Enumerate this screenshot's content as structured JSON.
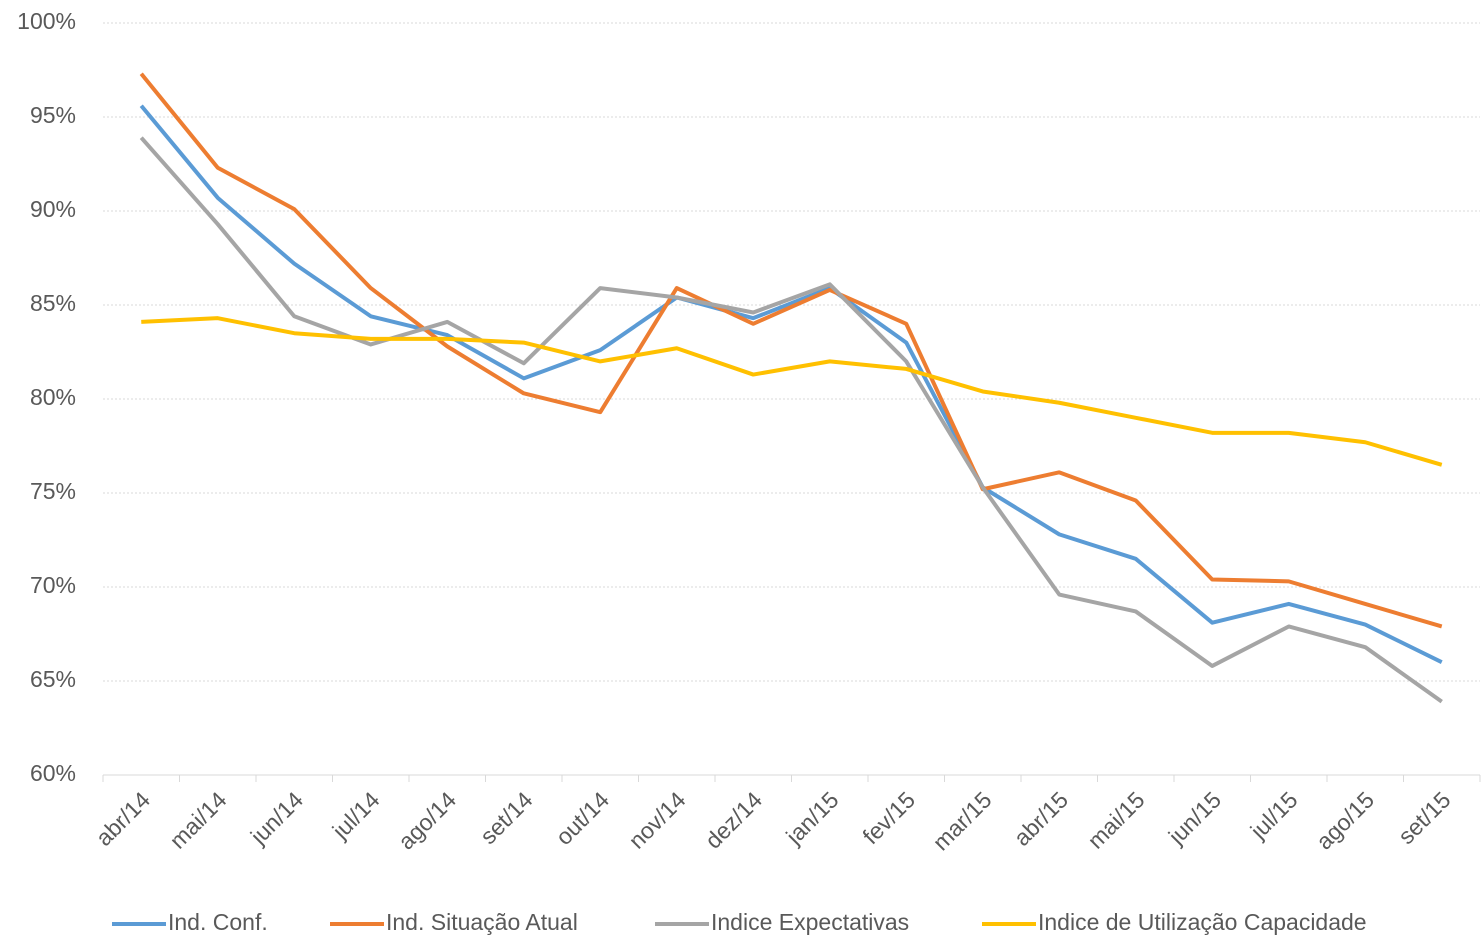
{
  "chart_data": {
    "type": "line",
    "categories": [
      "abr/14",
      "mai/14",
      "jun/14",
      "jul/14",
      "ago/14",
      "set/14",
      "out/14",
      "nov/14",
      "dez/14",
      "jan/15",
      "fev/15",
      "mar/15",
      "abr/15",
      "mai/15",
      "jun/15",
      "jul/15",
      "ago/15",
      "set/15"
    ],
    "series": [
      {
        "name": "Ind. Conf.",
        "color": "#5b9bd5",
        "values": [
          95.6,
          90.7,
          87.2,
          84.4,
          83.4,
          81.1,
          82.6,
          85.4,
          84.3,
          85.9,
          83.0,
          75.3,
          72.8,
          71.5,
          68.1,
          69.1,
          68.0,
          66.0
        ]
      },
      {
        "name": "Ind. Situação Atual",
        "color": "#ed7d31",
        "values": [
          97.3,
          92.3,
          90.1,
          85.9,
          82.8,
          80.3,
          79.3,
          85.9,
          84.0,
          85.8,
          84.0,
          75.2,
          76.1,
          74.6,
          70.4,
          70.3,
          69.1,
          67.9
        ]
      },
      {
        "name": "Indice Expectativas",
        "color": "#a5a5a5",
        "values": [
          93.9,
          89.3,
          84.4,
          82.9,
          84.1,
          81.9,
          85.9,
          85.4,
          84.6,
          86.1,
          82.0,
          75.3,
          69.6,
          68.7,
          65.8,
          67.9,
          66.8,
          63.9
        ]
      },
      {
        "name": "Indice de Utilização Capacidade",
        "color": "#ffc000",
        "values": [
          84.1,
          84.3,
          83.5,
          83.2,
          83.2,
          83.0,
          82.0,
          82.7,
          81.3,
          82.0,
          81.6,
          80.4,
          79.8,
          79.0,
          78.2,
          78.2,
          77.7,
          76.5
        ]
      }
    ],
    "ylim": [
      60,
      100
    ],
    "yticks": [
      {
        "value": 60,
        "label": "60%"
      },
      {
        "value": 65,
        "label": "65%"
      },
      {
        "value": 70,
        "label": "70%"
      },
      {
        "value": 75,
        "label": "75%"
      },
      {
        "value": 80,
        "label": "80%"
      },
      {
        "value": 85,
        "label": "85%"
      },
      {
        "value": 90,
        "label": "90%"
      },
      {
        "value": 95,
        "label": "95%"
      },
      {
        "value": 100,
        "label": "100%"
      }
    ],
    "grid": true,
    "legend": "bottom"
  }
}
